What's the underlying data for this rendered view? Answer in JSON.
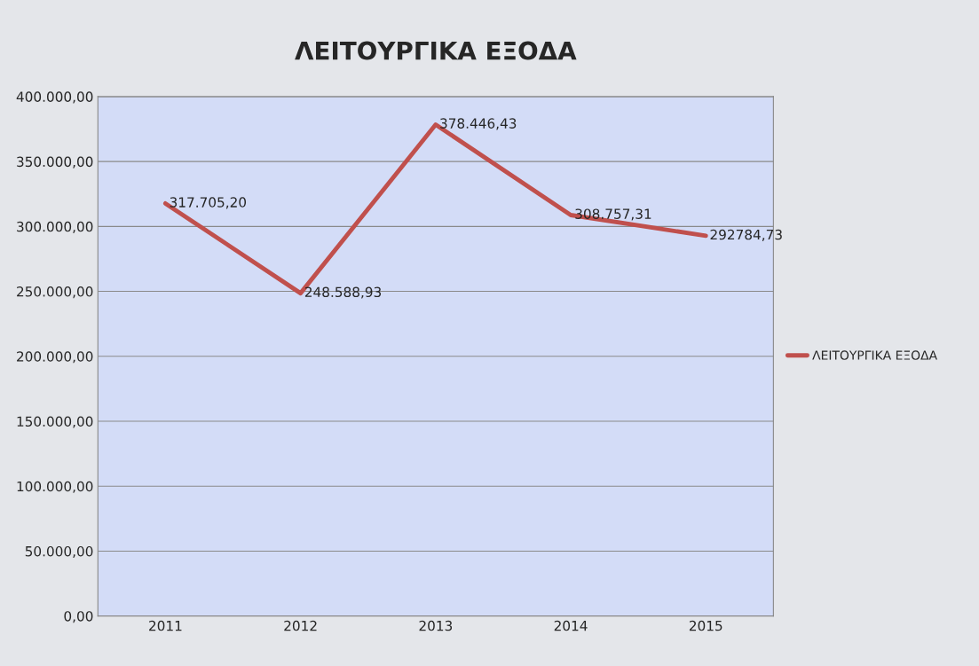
{
  "chart_data": {
    "type": "line",
    "title": "ΛΕΙΤΟΥΡΓΙΚΑ ΕΞΟΔΑ",
    "categories": [
      "2011",
      "2012",
      "2013",
      "2014",
      "2015"
    ],
    "series": [
      {
        "name": "ΛΕΙΤΟΥΡΓΙΚΑ ΕΞΟΔΑ",
        "color": "#c0504d",
        "values": [
          317705.2,
          248588.93,
          378446.43,
          308757.31,
          292784.73
        ],
        "value_labels": [
          "317.705,20",
          "248.588,93",
          "378.446,43",
          "308.757,31",
          "292784,73"
        ]
      }
    ],
    "ylim": [
      0,
      400000
    ],
    "yticks": [
      {
        "value": 0,
        "label": "0,00"
      },
      {
        "value": 50000,
        "label": "50.000,00"
      },
      {
        "value": 100000,
        "label": "100.000,00"
      },
      {
        "value": 150000,
        "label": "150.000,00"
      },
      {
        "value": 200000,
        "label": "200.000,00"
      },
      {
        "value": 250000,
        "label": "250.000,00"
      },
      {
        "value": 300000,
        "label": "300.000,00"
      },
      {
        "value": 350000,
        "label": "350.000,00"
      },
      {
        "value": 400000,
        "label": "400.000,00"
      }
    ],
    "grid": "y",
    "legend": "right",
    "marker": "none",
    "line_style": "solid"
  }
}
